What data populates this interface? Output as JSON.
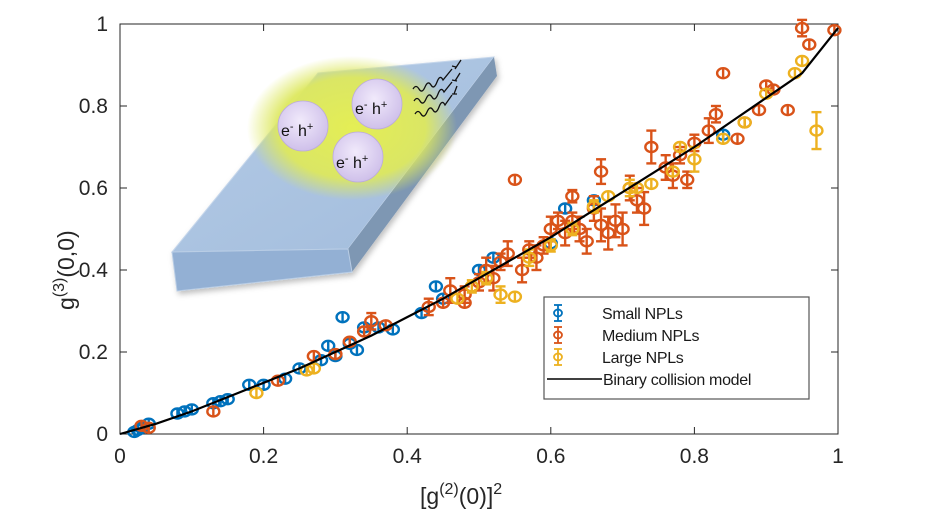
{
  "chart_data": {
    "type": "scatter",
    "title": "",
    "xlabel": "[g(2)(0)]2",
    "xlabel_parts": {
      "pre": "[g",
      "sup1": "(2)",
      "mid": "(0)]",
      "sup2": "2"
    },
    "ylabel": "g(3)(0,0)",
    "ylabel_parts": {
      "pre": "g",
      "sup": "(3)",
      "post": "(0,0)"
    },
    "xlim": [
      0,
      1
    ],
    "ylim": [
      0,
      1
    ],
    "xticks": [
      0,
      0.2,
      0.4,
      0.6,
      0.8,
      1
    ],
    "xtick_labels": [
      "0",
      "0.2",
      "0.4",
      "0.6",
      "0.8",
      "1"
    ],
    "yticks": [
      0,
      0.2,
      0.4,
      0.6,
      0.8,
      1
    ],
    "ytick_labels": [
      "0",
      "0.2",
      "0.4",
      "0.6",
      "0.8",
      "1"
    ],
    "grid": false,
    "legend_position": "bottom-right",
    "series": [
      {
        "name": "Small NPLs",
        "color": "#0072BD",
        "marker": "circle-errorbar",
        "points": [
          [
            0.02,
            0.005,
            0.004
          ],
          [
            0.025,
            0.01,
            0.004
          ],
          [
            0.03,
            0.015,
            0.004
          ],
          [
            0.04,
            0.025,
            0.005
          ],
          [
            0.08,
            0.05,
            0.005
          ],
          [
            0.09,
            0.055,
            0.005
          ],
          [
            0.1,
            0.06,
            0.005
          ],
          [
            0.13,
            0.075,
            0.005
          ],
          [
            0.14,
            0.08,
            0.005
          ],
          [
            0.15,
            0.085,
            0.005
          ],
          [
            0.18,
            0.12,
            0.005
          ],
          [
            0.2,
            0.12,
            0.005
          ],
          [
            0.23,
            0.135,
            0.005
          ],
          [
            0.25,
            0.16,
            0.006
          ],
          [
            0.28,
            0.18,
            0.006
          ],
          [
            0.29,
            0.215,
            0.006
          ],
          [
            0.3,
            0.19,
            0.006
          ],
          [
            0.31,
            0.285,
            0.006
          ],
          [
            0.32,
            0.22,
            0.006
          ],
          [
            0.33,
            0.205,
            0.01
          ],
          [
            0.34,
            0.26,
            0.006
          ],
          [
            0.36,
            0.26,
            0.006
          ],
          [
            0.38,
            0.255,
            0.006
          ],
          [
            0.42,
            0.295,
            0.012
          ],
          [
            0.44,
            0.36,
            0.008
          ],
          [
            0.45,
            0.33,
            0.008
          ],
          [
            0.5,
            0.4,
            0.008
          ],
          [
            0.52,
            0.43,
            0.01
          ],
          [
            0.6,
            0.465,
            0.01
          ],
          [
            0.62,
            0.55,
            0.01
          ],
          [
            0.66,
            0.57,
            0.01
          ],
          [
            0.84,
            0.73,
            0.012
          ]
        ]
      },
      {
        "name": "Medium NPLs",
        "color": "#D95319",
        "marker": "circle-errorbar",
        "points": [
          [
            0.03,
            0.02,
            0.005
          ],
          [
            0.04,
            0.015,
            0.005
          ],
          [
            0.13,
            0.055,
            0.006
          ],
          [
            0.22,
            0.13,
            0.006
          ],
          [
            0.27,
            0.19,
            0.006
          ],
          [
            0.3,
            0.195,
            0.006
          ],
          [
            0.32,
            0.225,
            0.008
          ],
          [
            0.34,
            0.25,
            0.01
          ],
          [
            0.35,
            0.275,
            0.02
          ],
          [
            0.37,
            0.265,
            0.008
          ],
          [
            0.43,
            0.31,
            0.02
          ],
          [
            0.45,
            0.32,
            0.01
          ],
          [
            0.46,
            0.35,
            0.03
          ],
          [
            0.48,
            0.34,
            0.02
          ],
          [
            0.48,
            0.32,
            0.01
          ],
          [
            0.5,
            0.37,
            0.02
          ],
          [
            0.51,
            0.4,
            0.03
          ],
          [
            0.52,
            0.38,
            0.03
          ],
          [
            0.53,
            0.42,
            0.02
          ],
          [
            0.54,
            0.44,
            0.03
          ],
          [
            0.55,
            0.62,
            0.006
          ],
          [
            0.56,
            0.4,
            0.03
          ],
          [
            0.57,
            0.45,
            0.02
          ],
          [
            0.58,
            0.43,
            0.03
          ],
          [
            0.59,
            0.46,
            0.02
          ],
          [
            0.6,
            0.5,
            0.03
          ],
          [
            0.61,
            0.52,
            0.02
          ],
          [
            0.62,
            0.49,
            0.03
          ],
          [
            0.63,
            0.58,
            0.015
          ],
          [
            0.63,
            0.52,
            0.02
          ],
          [
            0.64,
            0.5,
            0.03
          ],
          [
            0.65,
            0.47,
            0.03
          ],
          [
            0.66,
            0.55,
            0.03
          ],
          [
            0.67,
            0.51,
            0.04
          ],
          [
            0.67,
            0.64,
            0.03
          ],
          [
            0.68,
            0.49,
            0.04
          ],
          [
            0.69,
            0.52,
            0.04
          ],
          [
            0.7,
            0.5,
            0.04
          ],
          [
            0.71,
            0.6,
            0.03
          ],
          [
            0.72,
            0.57,
            0.03
          ],
          [
            0.73,
            0.55,
            0.04
          ],
          [
            0.74,
            0.7,
            0.04
          ],
          [
            0.76,
            0.65,
            0.03
          ],
          [
            0.77,
            0.63,
            0.03
          ],
          [
            0.78,
            0.68,
            0.02
          ],
          [
            0.79,
            0.62,
            0.02
          ],
          [
            0.8,
            0.71,
            0.02
          ],
          [
            0.82,
            0.74,
            0.03
          ],
          [
            0.83,
            0.78,
            0.02
          ],
          [
            0.84,
            0.88,
            0.006
          ],
          [
            0.86,
            0.72,
            0.01
          ],
          [
            0.87,
            0.76,
            0.01
          ],
          [
            0.89,
            0.79,
            0.01
          ],
          [
            0.9,
            0.85,
            0.01
          ],
          [
            0.91,
            0.84,
            0.01
          ],
          [
            0.93,
            0.79,
            0.01
          ],
          [
            0.95,
            0.99,
            0.02
          ],
          [
            0.96,
            0.95,
            0.01
          ],
          [
            0.995,
            0.985,
            0.008
          ]
        ]
      },
      {
        "name": "Large NPLs",
        "color": "#EDB120",
        "marker": "circle-errorbar",
        "points": [
          [
            0.19,
            0.1,
            0.006
          ],
          [
            0.26,
            0.155,
            0.006
          ],
          [
            0.27,
            0.16,
            0.006
          ],
          [
            0.47,
            0.33,
            0.01
          ],
          [
            0.49,
            0.36,
            0.015
          ],
          [
            0.51,
            0.38,
            0.015
          ],
          [
            0.53,
            0.34,
            0.02
          ],
          [
            0.55,
            0.335,
            0.01
          ],
          [
            0.57,
            0.43,
            0.02
          ],
          [
            0.6,
            0.46,
            0.015
          ],
          [
            0.63,
            0.5,
            0.015
          ],
          [
            0.66,
            0.555,
            0.015
          ],
          [
            0.68,
            0.58,
            0.01
          ],
          [
            0.71,
            0.6,
            0.02
          ],
          [
            0.72,
            0.6,
            0.01
          ],
          [
            0.74,
            0.61,
            0.01
          ],
          [
            0.77,
            0.64,
            0.01
          ],
          [
            0.78,
            0.7,
            0.01
          ],
          [
            0.8,
            0.67,
            0.03
          ],
          [
            0.84,
            0.72,
            0.01
          ],
          [
            0.87,
            0.76,
            0.01
          ],
          [
            0.9,
            0.83,
            0.01
          ],
          [
            0.94,
            0.88,
            0.01
          ],
          [
            0.95,
            0.91,
            0.01
          ],
          [
            0.97,
            0.74,
            0.045
          ]
        ]
      }
    ],
    "model": {
      "name": "Binary collision model",
      "color": "#000000",
      "type": "line",
      "curve": [
        [
          0,
          0
        ],
        [
          0.05,
          0.025
        ],
        [
          0.1,
          0.055
        ],
        [
          0.15,
          0.09
        ],
        [
          0.2,
          0.125
        ],
        [
          0.25,
          0.16
        ],
        [
          0.3,
          0.2
        ],
        [
          0.35,
          0.24
        ],
        [
          0.4,
          0.285
        ],
        [
          0.45,
          0.33
        ],
        [
          0.5,
          0.38
        ],
        [
          0.55,
          0.43
        ],
        [
          0.6,
          0.48
        ],
        [
          0.65,
          0.535
        ],
        [
          0.7,
          0.59
        ],
        [
          0.75,
          0.645
        ],
        [
          0.8,
          0.7
        ],
        [
          0.85,
          0.76
        ],
        [
          0.9,
          0.82
        ],
        [
          0.95,
          0.88
        ],
        [
          1.0,
          0.99
        ]
      ]
    },
    "legend": [
      {
        "label": "Small NPLs",
        "color": "#0072BD",
        "kind": "errorbar"
      },
      {
        "label": "Medium NPLs",
        "color": "#D95319",
        "kind": "errorbar"
      },
      {
        "label": "Large NPLs",
        "color": "#EDB120",
        "kind": "errorbar"
      },
      {
        "label": "Binary collision model",
        "color": "#000000",
        "kind": "line"
      }
    ],
    "inset": {
      "description": "nanoplatelet slab with three excitons emitting photons",
      "exciton_labels": [
        "e- h+",
        "e- h+",
        "e- h+"
      ],
      "slab_top_color": "#A9C3E0",
      "slab_side_color": "#7F98B4",
      "glow_color": "#E0EC5A",
      "exciton_color": "#D9CDEE"
    }
  }
}
